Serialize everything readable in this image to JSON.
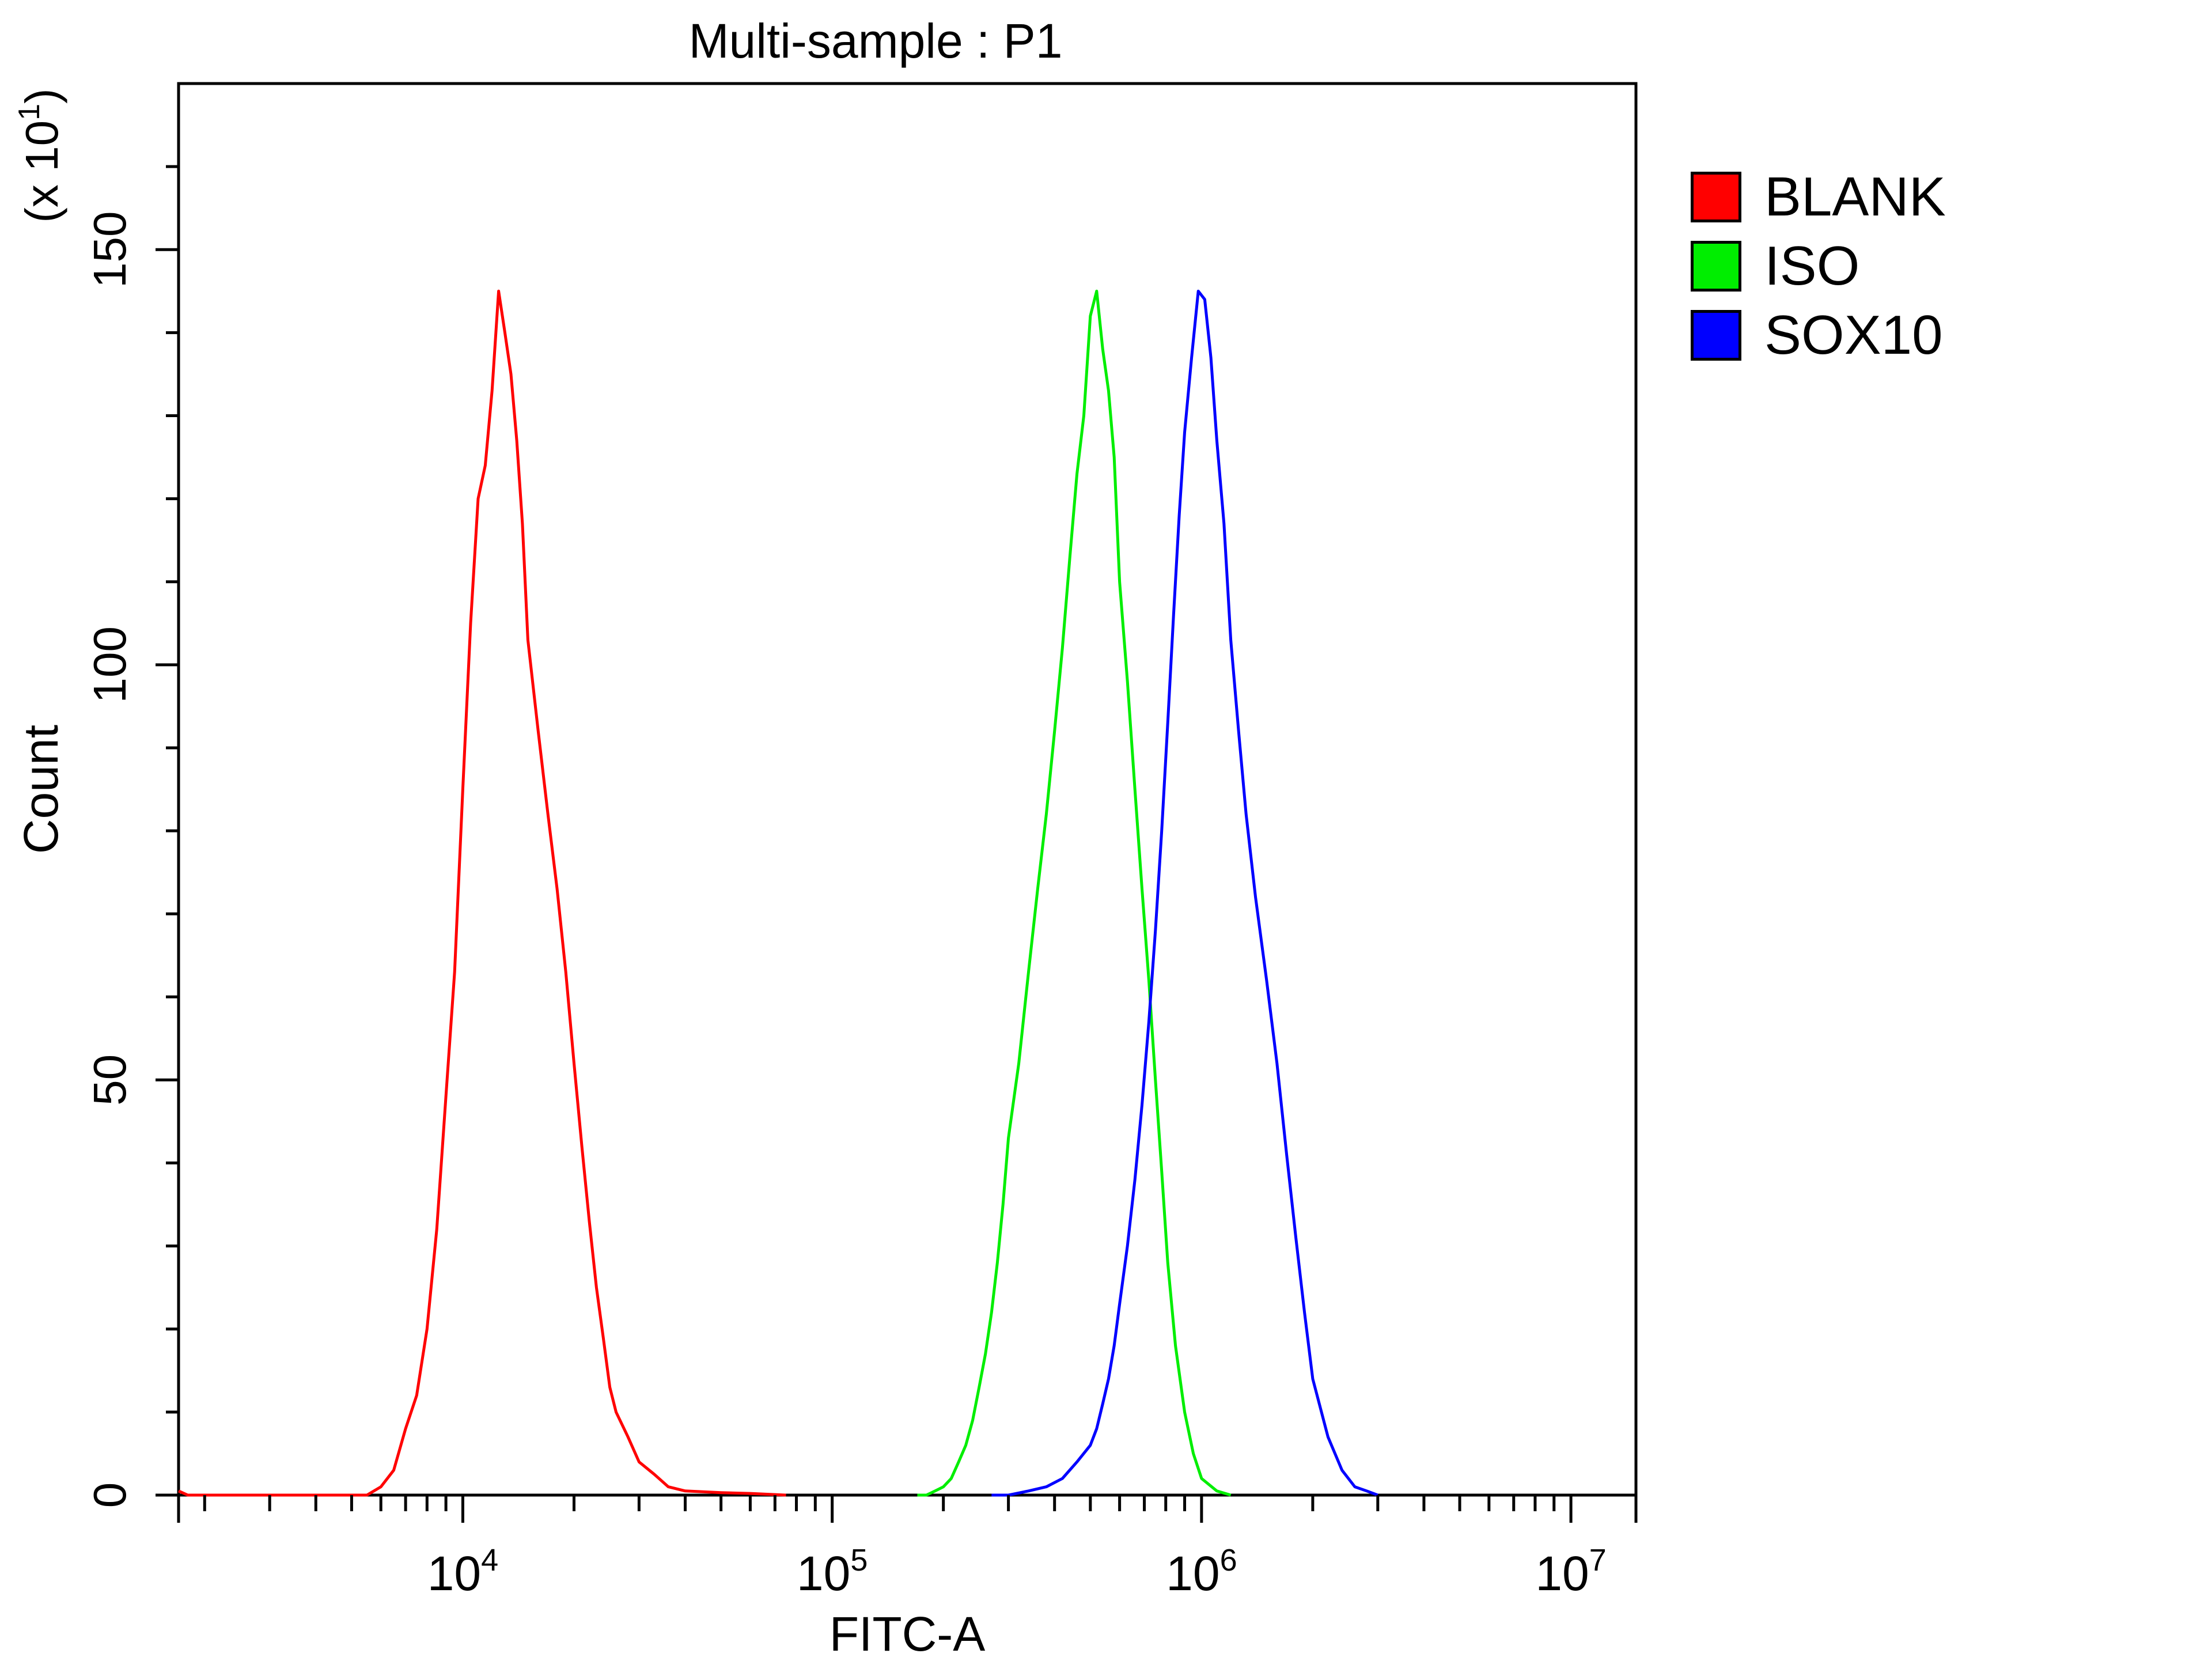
{
  "chart_data": {
    "type": "line",
    "title": "Multi-sample : P1",
    "xlabel": "FITC-A",
    "ylabel": "Count",
    "y_multiplier": "(x 10",
    "y_multiplier_exp": "1",
    "x_scale": "log",
    "xlim": [
      1700,
      15000000
    ],
    "ylim": [
      0,
      170
    ],
    "x_ticks": [
      {
        "value": 10000,
        "base": "10",
        "exp": "4"
      },
      {
        "value": 100000,
        "base": "10",
        "exp": "5"
      },
      {
        "value": 1000000,
        "base": "10",
        "exp": "6"
      },
      {
        "value": 10000000,
        "base": "10",
        "exp": "7"
      }
    ],
    "y_ticks": [
      {
        "value": 0,
        "label": "0"
      },
      {
        "value": 50,
        "label": "50"
      },
      {
        "value": 100,
        "label": "100"
      },
      {
        "value": 150,
        "label": "150"
      }
    ],
    "grid": false,
    "legend_position": "right",
    "series": [
      {
        "name": "BLANK",
        "color": "#ff0000",
        "x": [
          1700,
          1800,
          5500,
          6000,
          6500,
          7000,
          7500,
          8000,
          8500,
          9000,
          9500,
          10000,
          10500,
          11000,
          11500,
          12000,
          12500,
          13000,
          13500,
          14000,
          14500,
          15000,
          16000,
          17000,
          18000,
          19000,
          20000,
          21000,
          22000,
          23000,
          24000,
          25000,
          26000,
          28000,
          30000,
          33000,
          36000,
          40000,
          50000,
          60000,
          75000
        ],
        "y": [
          0.5,
          0,
          0,
          1,
          3,
          8,
          12,
          20,
          32,
          48,
          63,
          85,
          105,
          120,
          124,
          133,
          145,
          140,
          135,
          127,
          117,
          103,
          92,
          82,
          73,
          63,
          52,
          42,
          33,
          25,
          19,
          13,
          10,
          7,
          4,
          2.5,
          1,
          0.5,
          0.3,
          0.2,
          0
        ]
      },
      {
        "name": "ISO",
        "color": "#00ee00",
        "x": [
          170000,
          180000,
          190000,
          200000,
          210000,
          220000,
          230000,
          240000,
          250000,
          260000,
          270000,
          280000,
          290000,
          300000,
          320000,
          340000,
          360000,
          380000,
          400000,
          420000,
          440000,
          460000,
          480000,
          500000,
          520000,
          540000,
          560000,
          580000,
          600000,
          630000,
          660000,
          690000,
          720000,
          750000,
          780000,
          810000,
          850000,
          900000,
          950000,
          1000000,
          1100000,
          1200000
        ],
        "y": [
          0,
          0,
          0.5,
          1,
          2,
          4,
          6,
          9,
          13,
          17,
          22,
          28,
          35,
          43,
          52,
          63,
          73,
          82,
          92,
          102,
          113,
          123,
          130,
          142,
          145,
          138,
          133,
          125,
          110,
          98,
          85,
          73,
          62,
          50,
          39,
          28,
          18,
          10,
          5,
          2,
          0.5,
          0
        ]
      },
      {
        "name": "SOX10",
        "color": "#0000ff",
        "x": [
          270000,
          300000,
          340000,
          380000,
          420000,
          460000,
          500000,
          520000,
          540000,
          560000,
          580000,
          600000,
          630000,
          660000,
          690000,
          720000,
          750000,
          780000,
          810000,
          840000,
          870000,
          900000,
          940000,
          980000,
          1020000,
          1060000,
          1100000,
          1150000,
          1200000,
          1260000,
          1320000,
          1400000,
          1500000,
          1600000,
          1700000,
          1800000,
          1900000,
          2000000,
          2200000,
          2400000,
          2600000,
          2800000,
          3000000
        ],
        "y": [
          0,
          0,
          0.5,
          1,
          2,
          4,
          6,
          8,
          11,
          14,
          18,
          23,
          30,
          38,
          47,
          57,
          68,
          80,
          93,
          106,
          118,
          128,
          137,
          145,
          144,
          137,
          127,
          117,
          103,
          92,
          82,
          72,
          62,
          52,
          41,
          31,
          22,
          14,
          7,
          3,
          1,
          0.5,
          0
        ]
      }
    ]
  }
}
